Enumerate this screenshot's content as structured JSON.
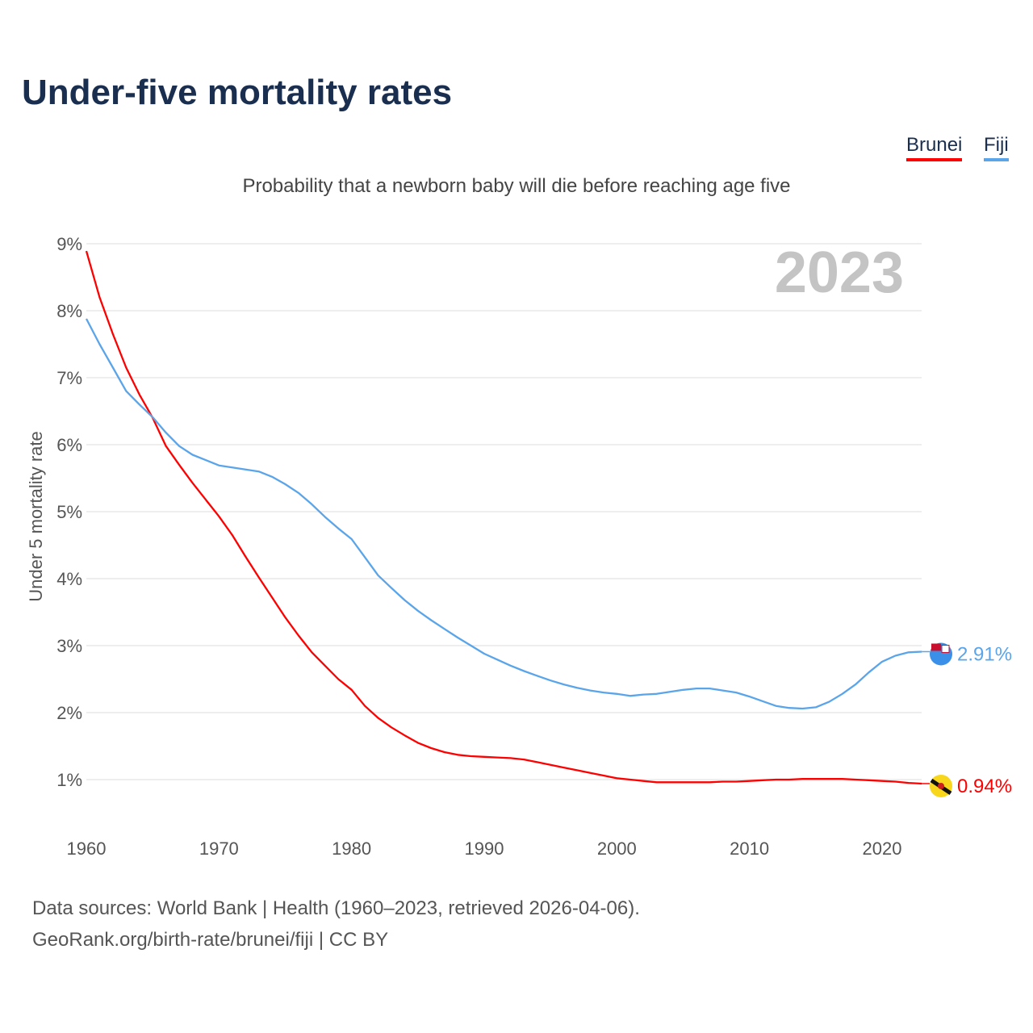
{
  "title": "Under-five mortality rates",
  "subtitle": "Probability that a newborn baby will die before reaching age five",
  "footer": {
    "line1": "Data sources: World Bank | Health (1960–2023, retrieved 2026-04-06).",
    "line2": "GeoRank.org/birth-rate/brunei/fiji | CC BY"
  },
  "chart_data": {
    "type": "line",
    "title": "Under-five mortality rates",
    "subtitle": "Probability that a newborn baby will die before reaching age five",
    "xlabel": "",
    "ylabel": "Under 5 mortality rate",
    "year_label": "2023",
    "xlim": [
      1960,
      2023
    ],
    "ylim": [
      0.5,
      9
    ],
    "x_ticks": [
      "1960",
      "1970",
      "1980",
      "1990",
      "2000",
      "2010",
      "2020"
    ],
    "y_ticks": [
      "1%",
      "2%",
      "3%",
      "4%",
      "5%",
      "6%",
      "7%",
      "8%",
      "9%"
    ],
    "grid": true,
    "legend_position": "top-right",
    "series": [
      {
        "name": "Brunei",
        "color": "#ff0000",
        "end_label": "0.94%",
        "flag": "brunei-flag-icon",
        "points": [
          [
            1960,
            8.89
          ],
          [
            1961,
            8.2
          ],
          [
            1962,
            7.65
          ],
          [
            1963,
            7.15
          ],
          [
            1964,
            6.75
          ],
          [
            1965,
            6.4
          ],
          [
            1966,
            5.98
          ],
          [
            1967,
            5.7
          ],
          [
            1968,
            5.43
          ],
          [
            1969,
            5.18
          ],
          [
            1970,
            4.93
          ],
          [
            1971,
            4.65
          ],
          [
            1972,
            4.33
          ],
          [
            1973,
            4.02
          ],
          [
            1974,
            3.72
          ],
          [
            1975,
            3.42
          ],
          [
            1976,
            3.15
          ],
          [
            1977,
            2.9
          ],
          [
            1978,
            2.7
          ],
          [
            1979,
            2.5
          ],
          [
            1980,
            2.34
          ],
          [
            1981,
            2.1
          ],
          [
            1982,
            1.92
          ],
          [
            1983,
            1.78
          ],
          [
            1984,
            1.66
          ],
          [
            1985,
            1.55
          ],
          [
            1986,
            1.47
          ],
          [
            1987,
            1.41
          ],
          [
            1988,
            1.37
          ],
          [
            1989,
            1.35
          ],
          [
            1990,
            1.34
          ],
          [
            1991,
            1.33
          ],
          [
            1992,
            1.32
          ],
          [
            1993,
            1.3
          ],
          [
            1994,
            1.26
          ],
          [
            1995,
            1.22
          ],
          [
            1996,
            1.18
          ],
          [
            1997,
            1.14
          ],
          [
            1998,
            1.1
          ],
          [
            1999,
            1.06
          ],
          [
            2000,
            1.02
          ],
          [
            2001,
            1.0
          ],
          [
            2002,
            0.98
          ],
          [
            2003,
            0.96
          ],
          [
            2004,
            0.96
          ],
          [
            2005,
            0.96
          ],
          [
            2006,
            0.96
          ],
          [
            2007,
            0.96
          ],
          [
            2008,
            0.97
          ],
          [
            2009,
            0.97
          ],
          [
            2010,
            0.98
          ],
          [
            2011,
            0.99
          ],
          [
            2012,
            1.0
          ],
          [
            2013,
            1.0
          ],
          [
            2014,
            1.01
          ],
          [
            2015,
            1.01
          ],
          [
            2016,
            1.01
          ],
          [
            2017,
            1.01
          ],
          [
            2018,
            1.0
          ],
          [
            2019,
            0.99
          ],
          [
            2020,
            0.98
          ],
          [
            2021,
            0.97
          ],
          [
            2022,
            0.95
          ],
          [
            2023,
            0.94
          ]
        ]
      },
      {
        "name": "Fiji",
        "color": "#5aa5ea",
        "end_label": "2.91%",
        "flag": "fiji-flag-icon",
        "points": [
          [
            1960,
            7.88
          ],
          [
            1961,
            7.5
          ],
          [
            1962,
            7.15
          ],
          [
            1963,
            6.8
          ],
          [
            1964,
            6.6
          ],
          [
            1965,
            6.41
          ],
          [
            1966,
            6.18
          ],
          [
            1967,
            5.98
          ],
          [
            1968,
            5.85
          ],
          [
            1969,
            5.77
          ],
          [
            1970,
            5.69
          ],
          [
            1971,
            5.66
          ],
          [
            1972,
            5.63
          ],
          [
            1973,
            5.6
          ],
          [
            1974,
            5.52
          ],
          [
            1975,
            5.41
          ],
          [
            1976,
            5.28
          ],
          [
            1977,
            5.11
          ],
          [
            1978,
            4.92
          ],
          [
            1979,
            4.75
          ],
          [
            1980,
            4.59
          ],
          [
            1981,
            4.32
          ],
          [
            1982,
            4.05
          ],
          [
            1983,
            3.86
          ],
          [
            1984,
            3.68
          ],
          [
            1985,
            3.52
          ],
          [
            1986,
            3.38
          ],
          [
            1987,
            3.25
          ],
          [
            1988,
            3.12
          ],
          [
            1989,
            3.0
          ],
          [
            1990,
            2.88
          ],
          [
            1991,
            2.79
          ],
          [
            1992,
            2.7
          ],
          [
            1993,
            2.62
          ],
          [
            1994,
            2.55
          ],
          [
            1995,
            2.48
          ],
          [
            1996,
            2.42
          ],
          [
            1997,
            2.37
          ],
          [
            1998,
            2.33
          ],
          [
            1999,
            2.3
          ],
          [
            2000,
            2.28
          ],
          [
            2001,
            2.25
          ],
          [
            2002,
            2.27
          ],
          [
            2003,
            2.28
          ],
          [
            2004,
            2.31
          ],
          [
            2005,
            2.34
          ],
          [
            2006,
            2.36
          ],
          [
            2007,
            2.36
          ],
          [
            2008,
            2.33
          ],
          [
            2009,
            2.3
          ],
          [
            2010,
            2.24
          ],
          [
            2011,
            2.17
          ],
          [
            2012,
            2.1
          ],
          [
            2013,
            2.07
          ],
          [
            2014,
            2.06
          ],
          [
            2015,
            2.08
          ],
          [
            2016,
            2.16
          ],
          [
            2017,
            2.28
          ],
          [
            2018,
            2.42
          ],
          [
            2019,
            2.6
          ],
          [
            2020,
            2.76
          ],
          [
            2021,
            2.85
          ],
          [
            2022,
            2.9
          ],
          [
            2023,
            2.91
          ]
        ]
      }
    ]
  }
}
